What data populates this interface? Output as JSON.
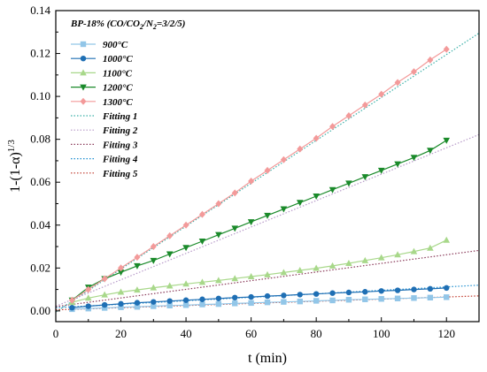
{
  "chart_data": {
    "type": "scatter",
    "title": "",
    "legend_title": "BP-18% (CO/CO2/N2=3/2/5)",
    "legend_placement": "top-left",
    "xlabel": "t (min)",
    "ylabel": "1-(1-α)1/3",
    "xlim": [
      0,
      130
    ],
    "ylim": [
      -0.005,
      0.14
    ],
    "x_ticks": [
      "0",
      "20",
      "40",
      "60",
      "80",
      "100",
      "120"
    ],
    "y_ticks": [
      "0.00",
      "0.02",
      "0.04",
      "0.06",
      "0.08",
      "0.10",
      "0.12",
      "0.14"
    ],
    "grid": false,
    "x": [
      5,
      10,
      15,
      20,
      25,
      30,
      35,
      40,
      45,
      50,
      55,
      60,
      65,
      70,
      75,
      80,
      85,
      90,
      95,
      100,
      105,
      110,
      115,
      120
    ],
    "series": [
      {
        "name": "900°C",
        "marker": "square",
        "color": "#92c6e8",
        "values": [
          0.0008,
          0.0011,
          0.0014,
          0.0017,
          0.0019,
          0.0022,
          0.0025,
          0.0027,
          0.003,
          0.0032,
          0.0035,
          0.0037,
          0.004,
          0.0042,
          0.0044,
          0.0047,
          0.0049,
          0.0052,
          0.0054,
          0.0056,
          0.0058,
          0.006,
          0.0062,
          0.0064
        ]
      },
      {
        "name": "1000°C",
        "marker": "circle",
        "color": "#1f6fb4",
        "values": [
          0.0015,
          0.0022,
          0.0028,
          0.0033,
          0.0038,
          0.0042,
          0.0046,
          0.005,
          0.0054,
          0.0058,
          0.0062,
          0.0065,
          0.0069,
          0.0072,
          0.0076,
          0.0079,
          0.0083,
          0.0086,
          0.0089,
          0.0093,
          0.0096,
          0.01,
          0.0103,
          0.0107
        ]
      },
      {
        "name": "1100°C",
        "marker": "triangle-up",
        "color": "#a8d88a",
        "values": [
          0.004,
          0.006,
          0.0075,
          0.0088,
          0.0098,
          0.0108,
          0.0117,
          0.0126,
          0.0134,
          0.0142,
          0.0151,
          0.016,
          0.0169,
          0.0179,
          0.0189,
          0.0199,
          0.021,
          0.0222,
          0.0235,
          0.0248,
          0.0262,
          0.0277,
          0.0293,
          0.033
        ]
      },
      {
        "name": "1200°C",
        "marker": "triangle-down",
        "color": "#1a8a2a",
        "values": [
          0.005,
          0.011,
          0.015,
          0.018,
          0.021,
          0.0235,
          0.0265,
          0.0295,
          0.0325,
          0.0355,
          0.0385,
          0.0415,
          0.0445,
          0.0475,
          0.0505,
          0.0535,
          0.0565,
          0.0595,
          0.0625,
          0.0655,
          0.0685,
          0.0715,
          0.0748,
          0.0795
        ]
      },
      {
        "name": "1300°C",
        "marker": "diamond",
        "color": "#f39a9a",
        "values": [
          0.005,
          0.01,
          0.015,
          0.02,
          0.025,
          0.03,
          0.035,
          0.04,
          0.045,
          0.05,
          0.055,
          0.0605,
          0.0655,
          0.0705,
          0.0755,
          0.0805,
          0.086,
          0.091,
          0.096,
          0.101,
          0.1065,
          0.1115,
          0.117,
          0.122
        ]
      }
    ],
    "fits": [
      {
        "name": "Fitting 1",
        "color": "#3ab0a8",
        "x": [
          0,
          130
        ],
        "y": [
          -0.0005,
          0.1295
        ]
      },
      {
        "name": "Fitting 2",
        "color": "#b79ac9",
        "x": [
          0,
          130
        ],
        "y": [
          0.0022,
          0.0822
        ]
      },
      {
        "name": "Fitting 3",
        "color": "#8a3a5a",
        "x": [
          0,
          130
        ],
        "y": [
          0.002,
          0.0282
        ]
      },
      {
        "name": "Fitting 4",
        "color": "#1f8fd0",
        "x": [
          0,
          130
        ],
        "y": [
          0.0015,
          0.012
        ]
      },
      {
        "name": "Fitting 5",
        "color": "#c0392b",
        "x": [
          0,
          130
        ],
        "y": [
          0.0005,
          0.007
        ]
      }
    ]
  }
}
